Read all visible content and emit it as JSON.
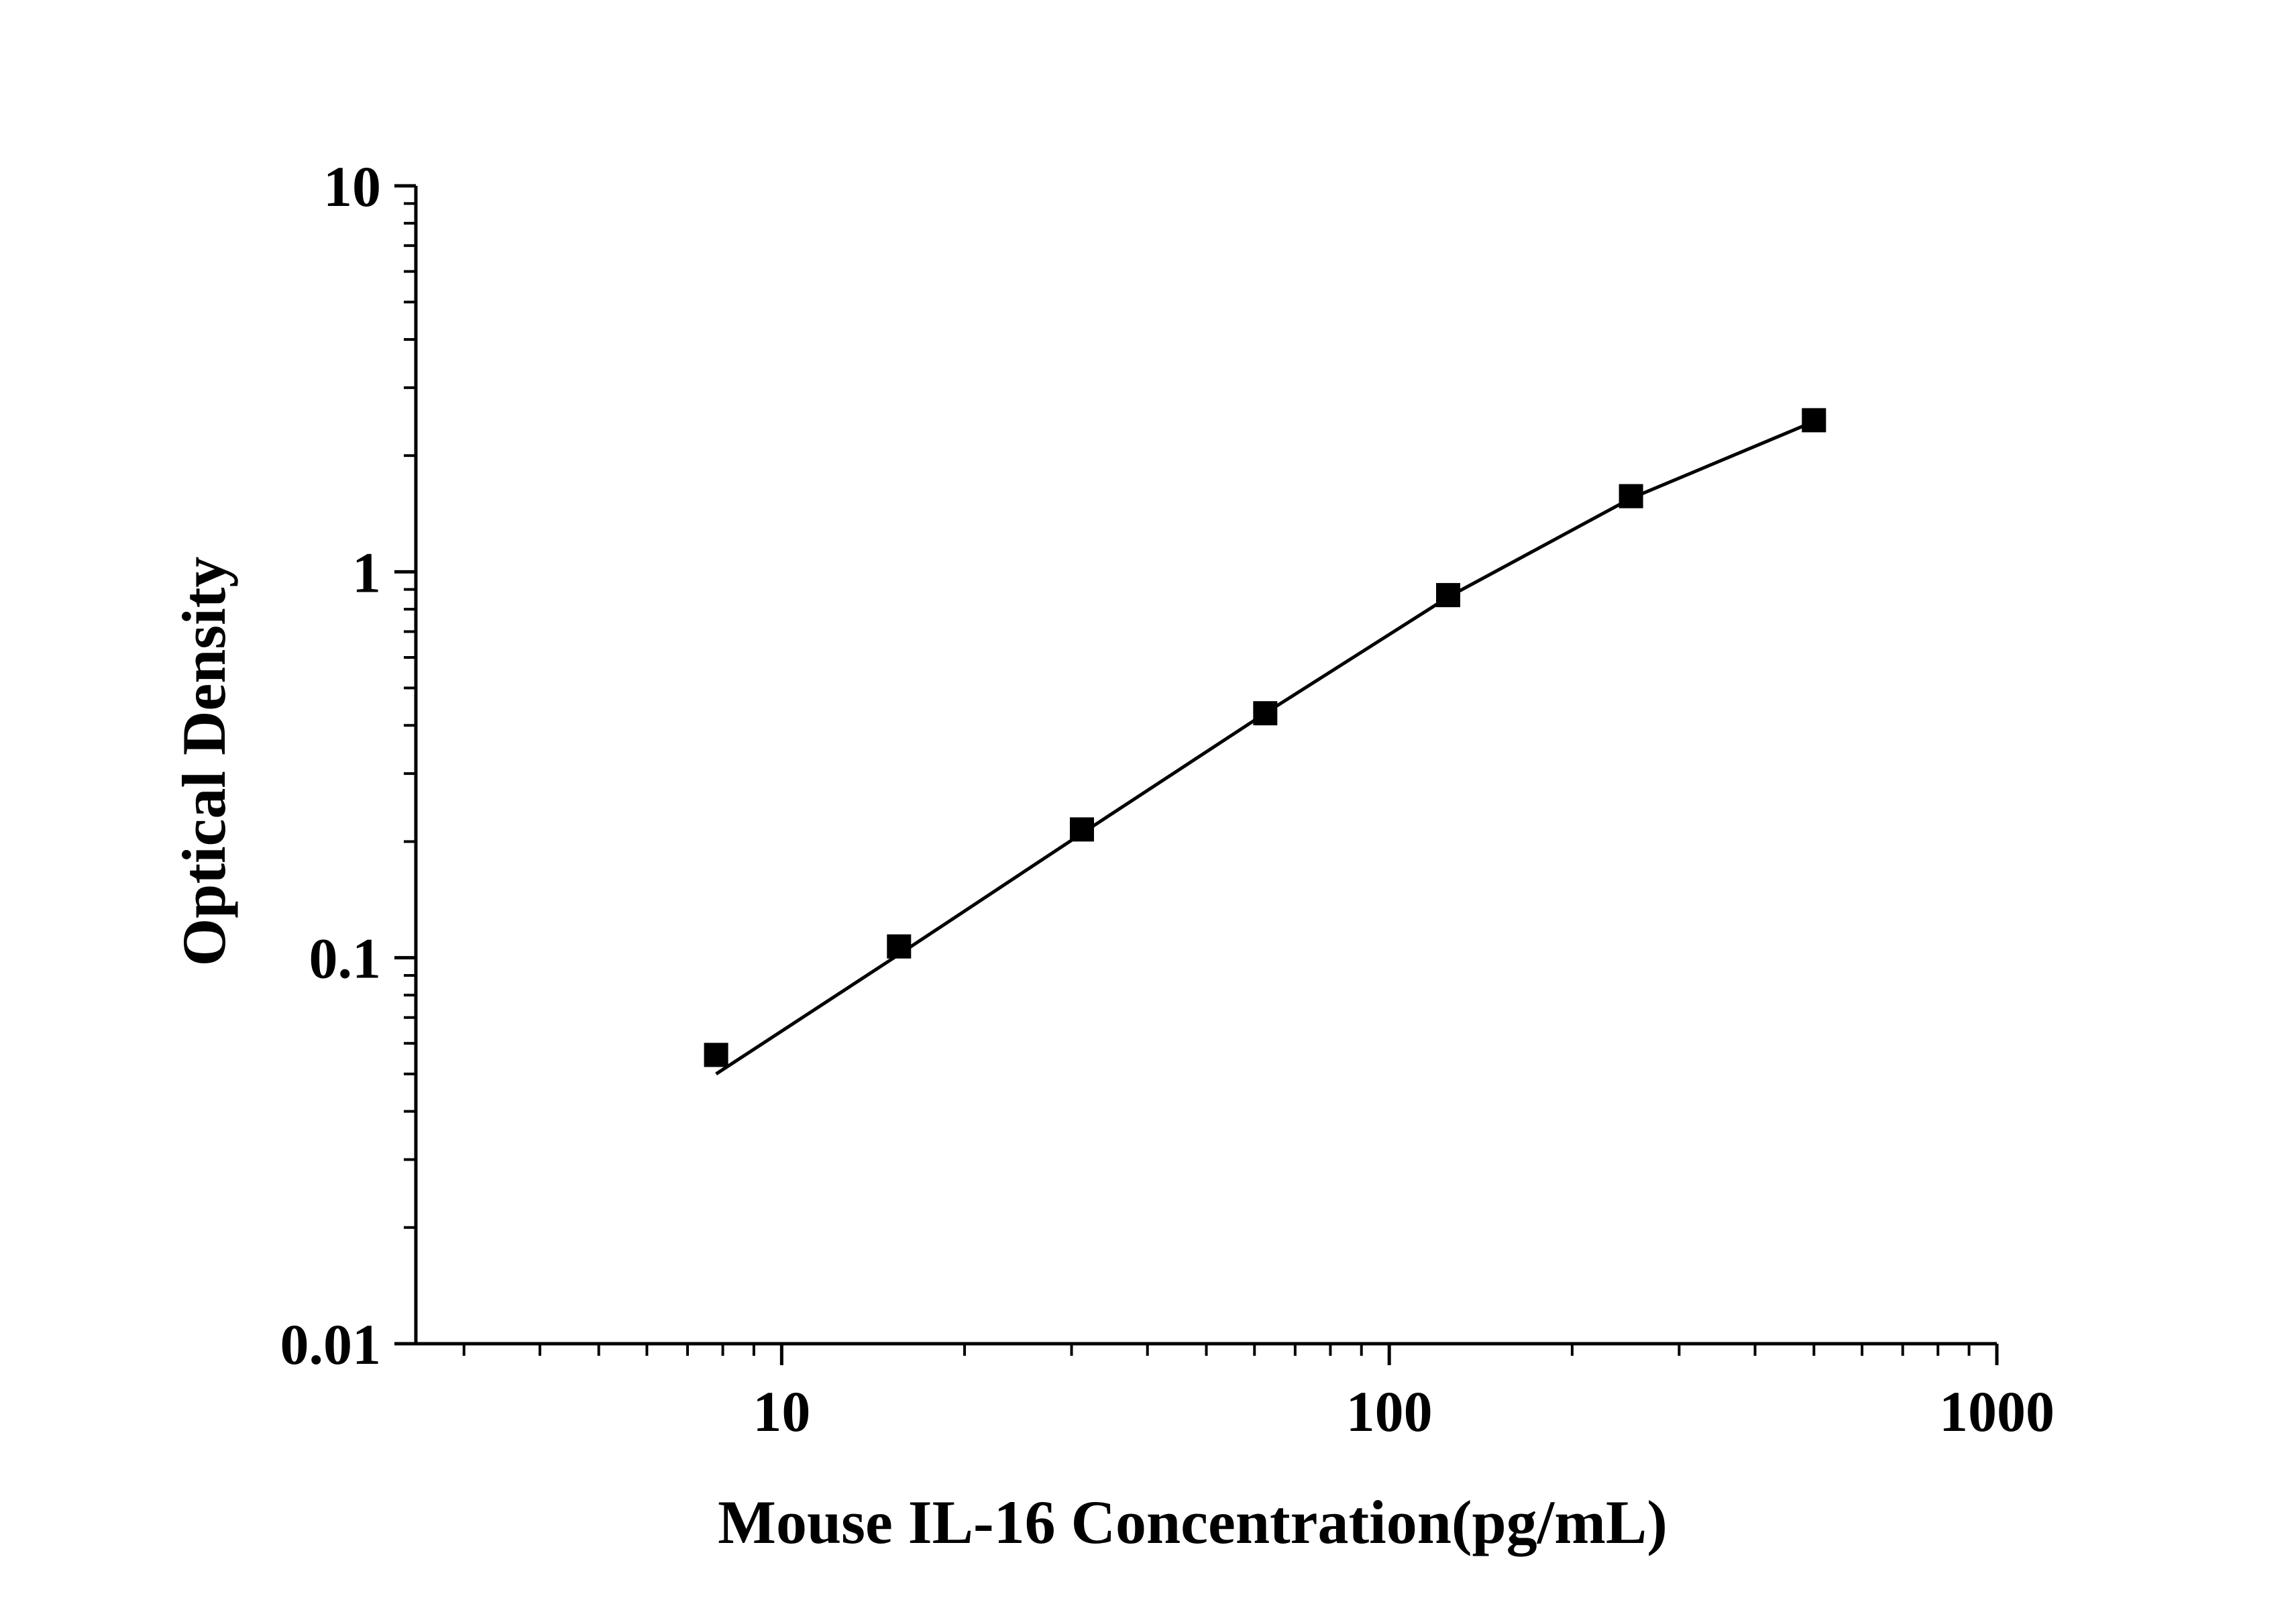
{
  "chart_data": {
    "type": "scatter",
    "title": "",
    "xlabel": "Mouse IL-16 Concentration(pg/mL)",
    "ylabel": "Optical Density",
    "x_scale": "log",
    "y_scale": "log",
    "xlim": [
      2.5,
      1000
    ],
    "ylim": [
      0.01,
      10
    ],
    "x_ticks": [
      10,
      100,
      1000
    ],
    "x_tick_labels": [
      "10",
      "100",
      "1000"
    ],
    "y_ticks": [
      0.01,
      0.1,
      1,
      10
    ],
    "y_tick_labels": [
      "0.01",
      "0.1",
      "1",
      "10"
    ],
    "grid": false,
    "legend": "none",
    "marker": "square",
    "colors": {
      "marker": "#000000",
      "line": "#000000"
    },
    "series": [
      {
        "x": [
          7.8,
          15.6,
          31.2,
          62.5,
          125,
          250,
          500
        ],
        "y": [
          0.056,
          0.107,
          0.215,
          0.43,
          0.87,
          1.57,
          2.47
        ]
      }
    ],
    "fit_curve": {
      "x": [
        7.8,
        15.6,
        31.2,
        62.5,
        125,
        250,
        500
      ],
      "y": [
        0.05,
        0.102,
        0.21,
        0.43,
        0.86,
        1.55,
        2.45
      ]
    }
  }
}
